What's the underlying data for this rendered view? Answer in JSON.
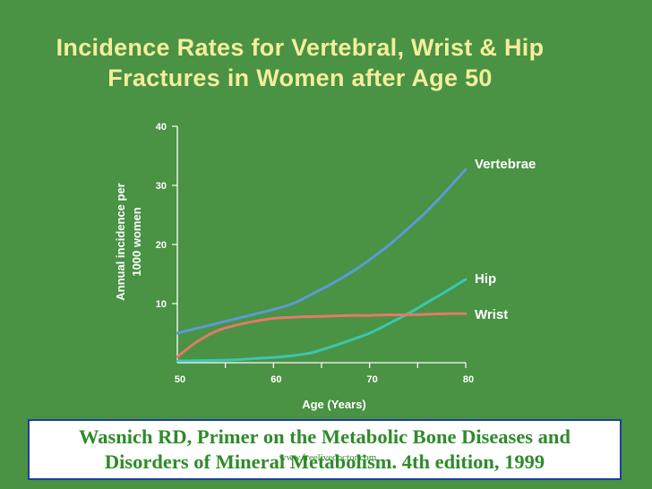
{
  "chart_data": {
    "type": "line",
    "title": "Incidence Rates for Vertebral, Wrist & Hip Fractures in Women after Age 50",
    "title_lines": [
      "Incidence Rates for Vertebral, Wrist & Hip",
      "Fractures in Women after Age 50"
    ],
    "xlabel": "Age (Years)",
    "ylabel_lines": [
      "Annual incidence per",
      "1000 women"
    ],
    "xlim": [
      50,
      80
    ],
    "ylim": [
      0,
      40
    ],
    "x_ticks": [
      50,
      60,
      70,
      80
    ],
    "y_ticks": [
      10,
      20,
      30,
      40
    ],
    "x": [
      50,
      52,
      54,
      56,
      58,
      60,
      62,
      64,
      66,
      68,
      70,
      72,
      74,
      76,
      78,
      80
    ],
    "series": [
      {
        "name": "Vertebrae",
        "color": "#5b9bd5",
        "values": [
          5.0,
          5.8,
          6.6,
          7.4,
          8.2,
          9.0,
          10.0,
          11.6,
          13.3,
          15.2,
          17.4,
          19.9,
          22.7,
          25.7,
          29.1,
          32.7
        ]
      },
      {
        "name": "Hip",
        "color": "#3cc6b0",
        "values": [
          0.3,
          0.35,
          0.4,
          0.5,
          0.7,
          0.9,
          1.2,
          1.7,
          2.7,
          3.8,
          5.0,
          6.6,
          8.3,
          10.2,
          12.1,
          14.1
        ]
      },
      {
        "name": "Wrist",
        "color": "#e07b6a",
        "values": [
          1.0,
          3.5,
          5.3,
          6.3,
          7.0,
          7.5,
          7.7,
          7.8,
          7.9,
          8.0,
          8.0,
          8.1,
          8.1,
          8.2,
          8.3,
          8.3
        ]
      }
    ],
    "legend": "inline labels at right end of lines",
    "grid": false
  },
  "footer": {
    "lines": [
      "Wasnich RD, Primer on the Metabolic Bone Diseases and",
      "Disorders of Mineral Metabolism. 4th edition, 1999"
    ],
    "watermark": "www.freelivedoctor.com"
  },
  "colors": {
    "background": "#4a9244",
    "title": "#f4ee9c",
    "axis": "#ffffff",
    "footer_text": "#2e8b2a",
    "footer_border": "#1d3f9c"
  }
}
